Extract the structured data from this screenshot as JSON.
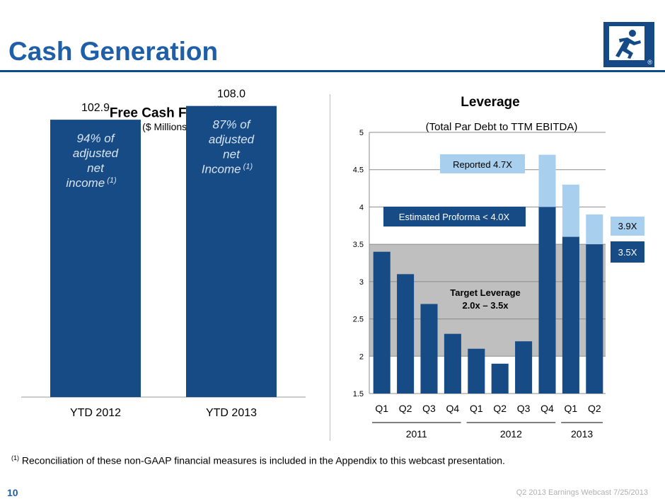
{
  "header": {
    "title": "Cash Generation"
  },
  "logo": {
    "icon": "runner-icon",
    "registered": "®"
  },
  "colors": {
    "bar_dark": "#164b86",
    "bar_light": "#a9cfef",
    "target_band": "#bfbfbf",
    "title_blue": "#1f5fa8"
  },
  "fcf": {
    "title": "Free Cash Flow",
    "title_note": "(1)",
    "subtitle": "($ Millions)"
  },
  "leverage": {
    "title": "Leverage",
    "subtitle": "(Total Par Debt to TTM EBITDA)",
    "reported_callout": "Reported 4.7X",
    "proforma_callout": "Estimated Proforma < 4.0X",
    "target_label_1": "Target Leverage",
    "target_label_2": "2.0x – 3.5x",
    "badge_high": "3.9X",
    "badge_low": "3.5X",
    "years": [
      "2011",
      "2012",
      "2013"
    ]
  },
  "footnote": {
    "marker": "(1)",
    "text": "Reconciliation of these non-GAAP financial measures is included in the Appendix to this webcast presentation."
  },
  "footer": {
    "page": "10",
    "right": "Q2 2013 Earnings Webcast 7/25/2013"
  },
  "chart_data": [
    {
      "type": "bar",
      "title": "Free Cash Flow (1)",
      "subtitle": "($ Millions)",
      "categories": [
        "YTD 2012",
        "YTD 2013"
      ],
      "values": [
        102.9,
        108.0
      ],
      "value_labels": [
        "102.9",
        "108.0"
      ],
      "bar_notes": [
        {
          "lines": [
            "94% of",
            "adjusted",
            "net",
            "income"
          ],
          "note": "(1)"
        },
        {
          "lines": [
            "87% of",
            "adjusted",
            "net",
            "Income"
          ],
          "note": "(1)"
        }
      ],
      "ylim": [
        0,
        120
      ]
    },
    {
      "type": "bar",
      "title": "Leverage",
      "subtitle": "(Total Par Debt to TTM EBITDA)",
      "categories": [
        "Q1",
        "Q2",
        "Q3",
        "Q4",
        "Q1",
        "Q2",
        "Q3",
        "Q4",
        "Q1",
        "Q2"
      ],
      "groups": [
        {
          "name": "2011",
          "start": 0,
          "end": 3
        },
        {
          "name": "2012",
          "start": 4,
          "end": 7
        },
        {
          "name": "2013",
          "start": 8,
          "end": 9
        }
      ],
      "series": [
        {
          "name": "Estimated Proforma",
          "values": [
            3.4,
            3.1,
            2.7,
            2.3,
            2.1,
            1.9,
            2.2,
            4.0,
            3.6,
            3.5
          ]
        },
        {
          "name": "Reported",
          "values": [
            null,
            null,
            null,
            null,
            null,
            null,
            null,
            4.7,
            4.3,
            3.9
          ]
        }
      ],
      "target_band": [
        2.0,
        3.5
      ],
      "yticks": [
        "1.5",
        "2",
        "2.5",
        "3",
        "3.5",
        "4",
        "4.5",
        "5"
      ],
      "ylim": [
        1.5,
        5
      ],
      "grid": true
    }
  ]
}
